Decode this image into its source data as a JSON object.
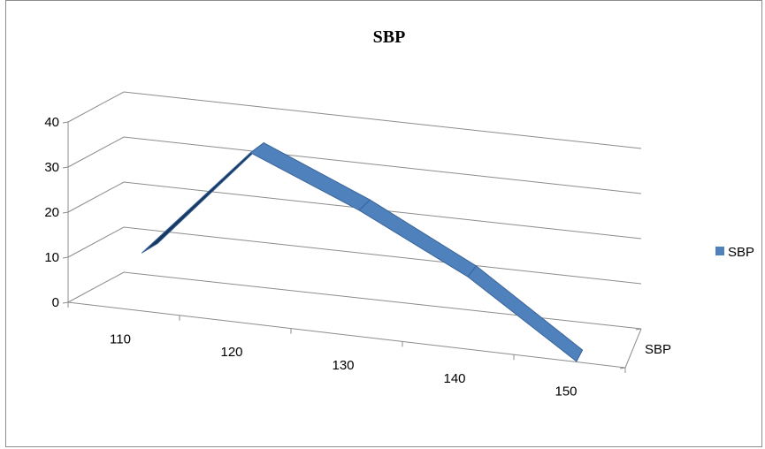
{
  "chart_data": {
    "type": "line",
    "subtype": "3d-line",
    "title": "SBP",
    "categories": [
      "110",
      "120",
      "130",
      "140",
      "150"
    ],
    "series": [
      {
        "name": "SBP",
        "values": [
          10,
          35,
          25,
          13,
          -3
        ],
        "color": "#4f81bd"
      }
    ],
    "y_ticks": [
      "0",
      "10",
      "20",
      "30",
      "40"
    ],
    "ylim": [
      0,
      40
    ],
    "depth_axis_label": "SBP",
    "legend": {
      "position": "right",
      "entries": [
        "SBP"
      ]
    },
    "grid": true,
    "colors": {
      "series": "#4f81bd",
      "series_dark": "#17365d",
      "series_edge": "#3a6499",
      "grid": "#8c8c8c"
    }
  }
}
